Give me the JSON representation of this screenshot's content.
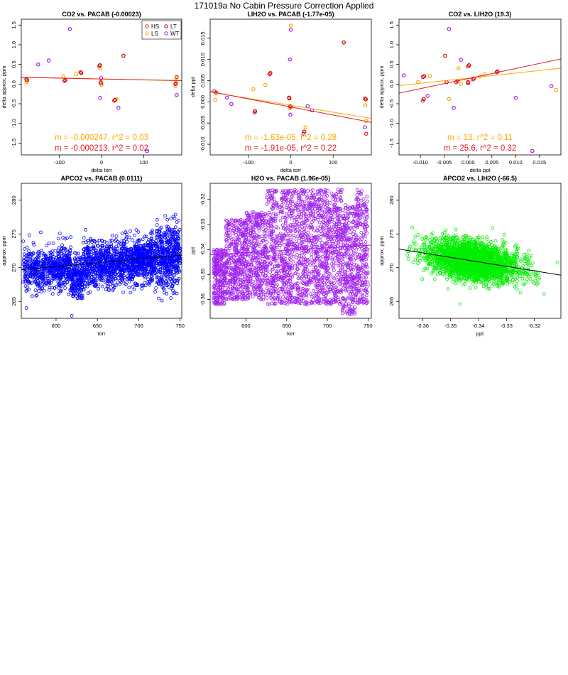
{
  "page": {
    "title": "171019a   No Cabin Pressure Correction Applied"
  },
  "colors": {
    "HS": "#e31a1c",
    "LS": "#ffa500",
    "LT": "#cc0000",
    "WT": "#a020f0",
    "blue": "#0000ff",
    "purple": "#a020f0",
    "green": "#00ee00",
    "fit_orange": "#ffa500",
    "fit_red": "#e31a1c",
    "fit_black": "#000000"
  },
  "chart_data": [
    {
      "id": "p1",
      "type": "scatter",
      "title": "CO2 vs. PACAB (-0.00023)",
      "xlabel": "delta torr",
      "ylabel": "delta approx. ppm",
      "xlim": [
        -190,
        190
      ],
      "ylim": [
        -1.8,
        1.65
      ],
      "xticks": [
        -100,
        0,
        100
      ],
      "yticks": [
        -1.5,
        -1.0,
        -0.5,
        0.0,
        0.5,
        1.0,
        1.5
      ],
      "xtick_labels": [
        "-100",
        "0",
        "100"
      ],
      "ytick_labels": [
        "-1.5",
        "-1.0",
        "-0.5",
        "0.0",
        "0.5",
        "1.0",
        "1.5"
      ],
      "legend": {
        "position": "top-right",
        "entries": [
          {
            "label": "HS",
            "color": "#e31a1c"
          },
          {
            "label": "LT",
            "color": "#cc0000"
          },
          {
            "label": "LS",
            "color": "#ffa500"
          },
          {
            "label": "WT",
            "color": "#a020f0"
          }
        ]
      },
      "series": [
        {
          "name": "HS",
          "color": "#e31a1c",
          "x": [
            -178,
            -88,
            -50,
            -5,
            -2,
            30,
            175,
            178
          ],
          "y": [
            0.12,
            0.08,
            0.3,
            0.45,
            0.05,
            -0.42,
            0.0,
            0.18
          ]
        },
        {
          "name": "LS",
          "color": "#ffa500",
          "x": [
            -178,
            -90,
            -60,
            -3,
            0,
            35,
            175,
            177
          ],
          "y": [
            0.05,
            0.2,
            0.25,
            0.4,
            -0.02,
            -0.38,
            -0.05,
            0.15
          ]
        },
        {
          "name": "LT",
          "color": "#cc0000",
          "x": [
            -176,
            -86,
            -48,
            -4,
            -1,
            32,
            176,
            52
          ],
          "y": [
            0.1,
            0.1,
            0.28,
            0.48,
            0.02,
            -0.4,
            0.02,
            0.72
          ]
        },
        {
          "name": "WT",
          "color": "#a020f0",
          "x": [
            -150,
            -125,
            -75,
            -1,
            -3,
            40,
            108,
            178
          ],
          "y": [
            0.5,
            0.6,
            1.4,
            0.15,
            -0.35,
            -0.6,
            -1.7,
            -0.28
          ]
        }
      ],
      "fits": [
        {
          "color": "#ffa500",
          "slope": -0.000247,
          "intercept": 0.13
        },
        {
          "color": "#e31a1c",
          "slope": -0.000213,
          "intercept": 0.13
        }
      ],
      "annotations": [
        {
          "text": "m = -0.000247, r^2 = 0.03",
          "color": "#ffa500"
        },
        {
          "text": "m = -0.000213, r^2 = 0.02",
          "color": "#e31a1c"
        }
      ]
    },
    {
      "id": "p2",
      "type": "scatter",
      "title": "LIH2O vs. PACAB (-1.77e-05)",
      "xlabel": "delta torr",
      "ylabel": "delta ppt",
      "xlim": [
        -190,
        190
      ],
      "ylim": [
        -0.0125,
        0.0195
      ],
      "xticks": [
        -100,
        0,
        100
      ],
      "yticks": [
        -0.01,
        -0.005,
        0.0,
        0.005,
        0.01,
        0.015
      ],
      "xtick_labels": [
        "-100",
        "0",
        "100"
      ],
      "ytick_labels": [
        "-0.010",
        "-0.005",
        "0.000",
        "0.005",
        "0.010",
        "0.015"
      ],
      "series": [
        {
          "name": "HS",
          "color": "#e31a1c",
          "x": [
            -180,
            -85,
            -50,
            -3,
            0,
            30,
            175,
            178
          ],
          "y": [
            0.0025,
            -0.0025,
            0.0065,
            0.0008,
            -0.0012,
            -0.0075,
            0.0008,
            -0.0075
          ]
        },
        {
          "name": "LS",
          "color": "#ffa500",
          "x": [
            -178,
            -88,
            -60,
            -2,
            0,
            35,
            176,
            178
          ],
          "y": [
            0.0005,
            0.003,
            0.004,
            -0.0015,
            0.018,
            -0.006,
            -0.0008,
            -0.0045
          ]
        },
        {
          "name": "LT",
          "color": "#cc0000",
          "x": [
            -176,
            -84,
            -48,
            -4,
            -1,
            32,
            177,
            125
          ],
          "y": [
            0.0022,
            -0.0022,
            0.0068,
            0.001,
            -0.001,
            -0.007,
            0.0006,
            0.014
          ]
        },
        {
          "name": "WT",
          "color": "#a020f0",
          "x": [
            -150,
            -140,
            -2,
            0,
            40,
            50,
            -1,
            175
          ],
          "y": [
            0.001,
            -0.0005,
            0.01,
            0.017,
            -0.001,
            -0.002,
            -0.003,
            -0.006
          ]
        }
      ],
      "fits": [
        {
          "color": "#ffa500",
          "slope": -1.63e-05,
          "intercept": -0.0008
        },
        {
          "color": "#e31a1c",
          "slope": -1.91e-05,
          "intercept": -0.0012
        }
      ],
      "annotations": [
        {
          "text": "m = -1.63e-05, r^2 = 0.28",
          "color": "#ffa500"
        },
        {
          "text": "m = -1.91e-05, r^2 = 0.22",
          "color": "#e31a1c"
        }
      ]
    },
    {
      "id": "p3",
      "type": "scatter",
      "title": "CO2 vs. LIH2O (19.3)",
      "xlabel": "delta ppt",
      "ylabel": "delta approx. ppm",
      "xlim": [
        -0.0145,
        0.0195
      ],
      "ylim": [
        -1.8,
        1.65
      ],
      "xticks": [
        -0.01,
        -0.005,
        0.0,
        0.005,
        0.01,
        0.015
      ],
      "yticks": [
        -1.5,
        -1.0,
        -0.5,
        0.0,
        0.5,
        1.0,
        1.5
      ],
      "xtick_labels": [
        "-0.010",
        "-0.005",
        "0.000",
        "0.005",
        "0.010",
        "0.015"
      ],
      "ytick_labels": [
        "-1.5",
        "-1.0",
        "-0.5",
        "0.0",
        "0.5",
        "1.0",
        "1.5"
      ],
      "series": [
        {
          "name": "HS",
          "color": "#e31a1c",
          "x": [
            -0.0095,
            -0.0095,
            -0.0025,
            0.0,
            0.001,
            0.006,
            -0.0045,
            0.0
          ],
          "y": [
            0.18,
            -0.42,
            0.05,
            0.45,
            0.12,
            0.3,
            0.05,
            0.02
          ]
        },
        {
          "name": "LS",
          "color": "#ffa500",
          "x": [
            -0.0105,
            -0.008,
            -0.004,
            -0.002,
            0.0025,
            0.0035,
            -0.0015,
            0.0185
          ],
          "y": [
            0.05,
            0.2,
            -0.38,
            0.4,
            0.2,
            0.25,
            0.0,
            -0.15
          ]
        },
        {
          "name": "LT",
          "color": "#cc0000",
          "x": [
            -0.0092,
            -0.0093,
            -0.0022,
            0.0002,
            0.0012,
            0.0062,
            -0.0048,
            0.0
          ],
          "y": [
            0.2,
            -0.38,
            0.08,
            0.48,
            0.14,
            0.32,
            0.72,
            0.05
          ]
        },
        {
          "name": "WT",
          "color": "#a020f0",
          "x": [
            -0.0135,
            -0.0085,
            -0.004,
            -0.003,
            -0.0015,
            0.01,
            0.0175,
            0.0135
          ],
          "y": [
            0.22,
            -0.3,
            1.4,
            -0.6,
            0.62,
            -0.35,
            -0.05,
            -1.7
          ]
        }
      ],
      "fits": [
        {
          "color": "#ffa500",
          "slope": 13,
          "intercept": 0.15
        },
        {
          "color": "#e31a1c",
          "slope": 25.6,
          "intercept": 0.14
        }
      ],
      "annotations": [
        {
          "text": "m = 13, r^2 = 0.11",
          "color": "#ffa500"
        },
        {
          "text": "m = 25.6, r^2 = 0.32",
          "color": "#e31a1c"
        }
      ]
    },
    {
      "id": "p4",
      "type": "scatter",
      "title": "APCO2 vs. PACAB (0.0111)",
      "xlabel": "torr",
      "ylabel": "approx. ppm",
      "xlim": [
        558,
        752
      ],
      "ylim": [
        262.5,
        282.5
      ],
      "xticks": [
        600,
        650,
        700,
        750
      ],
      "yticks": [
        265,
        270,
        275,
        280
      ],
      "xtick_labels": [
        "600",
        "650",
        "700",
        "750"
      ],
      "ytick_labels": [
        "265",
        "270",
        "275",
        "280"
      ],
      "cloud": {
        "color": "#0000ff",
        "n": 2600,
        "x_range": [
          560,
          750
        ],
        "center": 270.6,
        "trend_per_torr": 0.0111,
        "spread": 1.6
      },
      "fits": [
        {
          "color": "#000000",
          "slope": 0.0111,
          "intercept": 263.5
        }
      ]
    },
    {
      "id": "p5",
      "type": "scatter",
      "title": "H2O vs. PACAB (1.96e-05)",
      "xlabel": "torr",
      "ylabel": "ppt",
      "xlim": [
        556,
        754
      ],
      "ylim": [
        -0.3675,
        -0.3135
      ],
      "xticks": [
        600,
        650,
        700,
        750
      ],
      "yticks": [
        -0.36,
        -0.35,
        -0.34,
        -0.33,
        -0.32
      ],
      "xtick_labels": [
        "600",
        "650",
        "700",
        "750"
      ],
      "ytick_labels": [
        "-0.36",
        "-0.35",
        "-0.34",
        "-0.33",
        "-0.32"
      ],
      "cloud": {
        "color": "#a020f0",
        "n": 3000,
        "x_range": [
          560,
          750
        ],
        "center": -0.341,
        "trend_per_torr": 1.96e-05,
        "spread": 0.011
      },
      "fits": [
        {
          "color": "#a020f0",
          "slope": 1.96e-05,
          "intercept": -0.353
        }
      ]
    },
    {
      "id": "p6",
      "type": "scatter",
      "title": "APCO2 vs. LIH2O (-66.5)",
      "xlabel": "ppt",
      "ylabel": "approx. ppm",
      "xlim": [
        -0.3685,
        -0.3105
      ],
      "ylim": [
        262.5,
        282.5
      ],
      "xticks": [
        -0.36,
        -0.35,
        -0.34,
        -0.33,
        -0.32
      ],
      "yticks": [
        265,
        270,
        275,
        280
      ],
      "xtick_labels": [
        "-0.36",
        "-0.35",
        "-0.34",
        "-0.33",
        "-0.32"
      ],
      "ytick_labels": [
        "265",
        "270",
        "275",
        "280"
      ],
      "cloud": {
        "color": "#00ee00",
        "n": 2600,
        "x_range": [
          -0.366,
          -0.311
        ],
        "center": 271.0,
        "trend_per_unit": -66.5,
        "spread": 1.4,
        "x_center": -0.342
      },
      "fits": [
        {
          "color": "#000000",
          "slope": -66.5,
          "intercept": 248.25
        }
      ]
    }
  ]
}
